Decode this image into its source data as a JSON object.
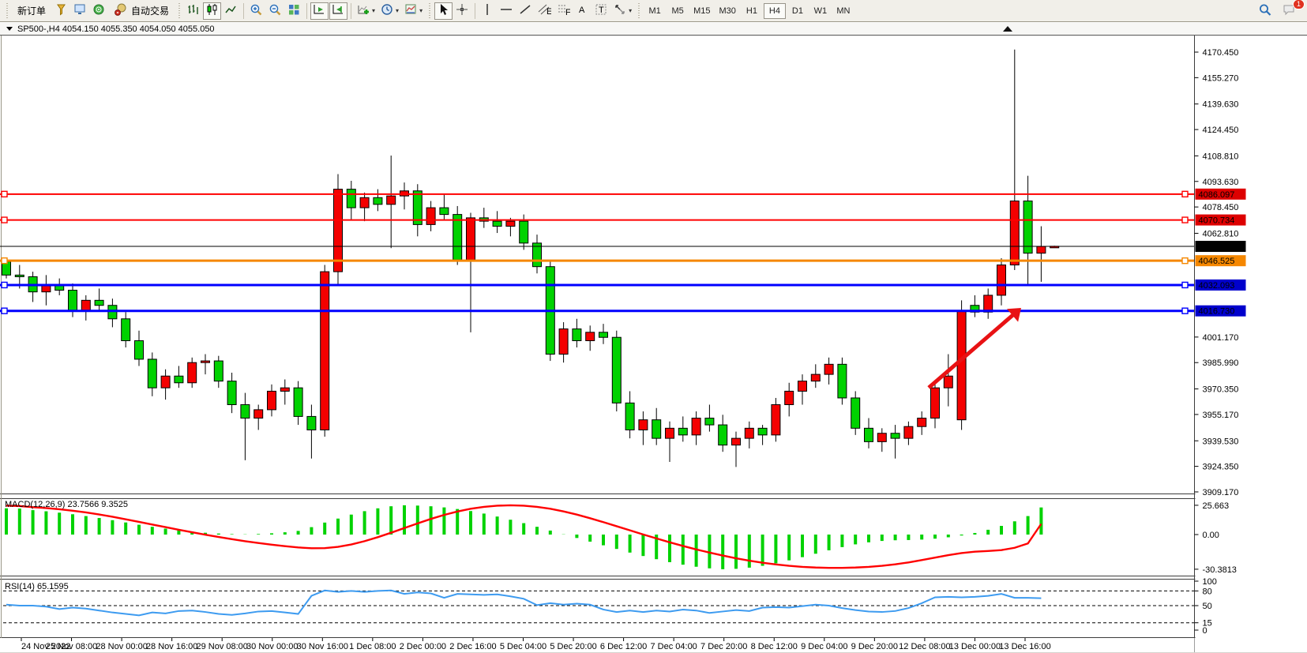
{
  "toolbar": {
    "new_order_label": "新订单",
    "autotrading_label": "自动交易",
    "timeframes": [
      "M1",
      "M5",
      "M15",
      "M30",
      "H1",
      "H4",
      "D1",
      "W1",
      "MN"
    ],
    "active_timeframe": "H4",
    "notification_count": "1"
  },
  "chart": {
    "title_bar": "SP500-,H4  4054.150 4055.350 4054.050 4055.050",
    "symbol": "SP500-",
    "period": "H4"
  },
  "price_axis": {
    "plain_labels": [
      "4170.450",
      "4155.270",
      "4139.630",
      "4124.450",
      "4108.810",
      "4093.630",
      "4078.450",
      "4062.810",
      "4001.170",
      "3985.990",
      "3970.350",
      "3955.170",
      "3939.530",
      "3924.350",
      "3909.170"
    ],
    "badges": [
      {
        "label": "4086.097",
        "color": "#dd0000"
      },
      {
        "label": "4070.734",
        "color": "#dd0000"
      },
      {
        "label": "4055.050",
        "color": "#000000"
      },
      {
        "label": "4046.525",
        "color": "#f58700"
      },
      {
        "label": "4032.093",
        "color": "#0000cc"
      },
      {
        "label": "4016.730",
        "color": "#0000cc"
      }
    ]
  },
  "time_axis": {
    "labels": [
      "24 Nov 2022",
      "25 Nov 08:00",
      "28 Nov 00:00",
      "28 Nov 16:00",
      "29 Nov 08:00",
      "30 Nov 00:00",
      "30 Nov 16:00",
      "1 Dec 08:00",
      "2 Dec 00:00",
      "2 Dec 16:00",
      "5 Dec 04:00",
      "5 Dec 20:00",
      "6 Dec 12:00",
      "7 Dec 04:00",
      "7 Dec 20:00",
      "8 Dec 12:00",
      "9 Dec 04:00",
      "9 Dec 20:00",
      "12 Dec 08:00",
      "13 Dec 00:00",
      "13 Dec 16:00"
    ]
  },
  "panels": {
    "macd": {
      "label": "MACD(12,26,9) 23.7566 9.3525",
      "axis_labels": [
        "25.663",
        "0.00",
        "-30.3813"
      ]
    },
    "rsi": {
      "label": "RSI(14) 65.1595",
      "axis_labels": [
        "100",
        "80",
        "50",
        "15",
        "0"
      ]
    }
  },
  "chart_data": {
    "type": "candlestick",
    "symbol": "SP500-",
    "timeframe": "H4",
    "title": "SP500-,H4",
    "ohlc_current": {
      "open": 4054.15,
      "high": 4055.35,
      "low": 4054.05,
      "close": 4055.05
    },
    "y_axis_range": [
      3909.17,
      4170.45
    ],
    "up_color": "#f40000",
    "down_color": "#00d200",
    "bars": [
      [
        4046,
        4048,
        4036,
        4038
      ],
      [
        4038,
        4044,
        4030,
        4037
      ],
      [
        4037,
        4040,
        4022,
        4028
      ],
      [
        4028,
        4038,
        4020,
        4032
      ],
      [
        4032,
        4036,
        4026,
        4029
      ],
      [
        4029,
        4033,
        4013,
        4017
      ],
      [
        4017,
        4026,
        4011,
        4023
      ],
      [
        4023,
        4030,
        4017,
        4020
      ],
      [
        4020,
        4024,
        4007,
        4012
      ],
      [
        4012,
        4016,
        3995,
        3999
      ],
      [
        3999,
        4005,
        3984,
        3988
      ],
      [
        3988,
        3992,
        3966,
        3971
      ],
      [
        3971,
        3982,
        3964,
        3978
      ],
      [
        3978,
        3984,
        3971,
        3974
      ],
      [
        3974,
        3989,
        3971,
        3986
      ],
      [
        3986,
        3991,
        3979,
        3987
      ],
      [
        3987,
        3990,
        3971,
        3975
      ],
      [
        3975,
        3980,
        3956,
        3961
      ],
      [
        3961,
        3968,
        3928,
        3953
      ],
      [
        3953,
        3961,
        3946,
        3958
      ],
      [
        3958,
        3973,
        3954,
        3969
      ],
      [
        3969,
        3976,
        3961,
        3971
      ],
      [
        3971,
        3975,
        3949,
        3954
      ],
      [
        3954,
        3961,
        3929,
        3946
      ],
      [
        3946,
        4044,
        3942,
        4040
      ],
      [
        4040,
        4098,
        4032,
        4089
      ],
      [
        4089,
        4094,
        4071,
        4078
      ],
      [
        4078,
        4087,
        4070,
        4084
      ],
      [
        4084,
        4089,
        4076,
        4080
      ],
      [
        4080,
        4109,
        4054,
        4085
      ],
      [
        4085,
        4093,
        4077,
        4088
      ],
      [
        4088,
        4092,
        4061,
        4068
      ],
      [
        4068,
        4082,
        4064,
        4078
      ],
      [
        4078,
        4086,
        4071,
        4074
      ],
      [
        4074,
        4079,
        4044,
        4047
      ],
      [
        4047,
        4075,
        4004,
        4072
      ],
      [
        4072,
        4078,
        4066,
        4070
      ],
      [
        4070,
        4076,
        4063,
        4067
      ],
      [
        4067,
        4072,
        4061,
        4070
      ],
      [
        4070,
        4074,
        4053,
        4057
      ],
      [
        4057,
        4062,
        4039,
        4043
      ],
      [
        4043,
        4046,
        3987,
        3991
      ],
      [
        3991,
        4010,
        3986,
        4006
      ],
      [
        4006,
        4012,
        3995,
        3999
      ],
      [
        3999,
        4008,
        3993,
        4004
      ],
      [
        4004,
        4009,
        3997,
        4001
      ],
      [
        4001,
        4005,
        3957,
        3962
      ],
      [
        3962,
        3969,
        3941,
        3946
      ],
      [
        3946,
        3957,
        3937,
        3952
      ],
      [
        3952,
        3959,
        3937,
        3941
      ],
      [
        3941,
        3951,
        3927,
        3947
      ],
      [
        3947,
        3954,
        3939,
        3943
      ],
      [
        3943,
        3957,
        3937,
        3953
      ],
      [
        3953,
        3961,
        3945,
        3949
      ],
      [
        3949,
        3955,
        3933,
        3937
      ],
      [
        3937,
        3945,
        3924,
        3941
      ],
      [
        3941,
        3951,
        3935,
        3947
      ],
      [
        3947,
        3949,
        3937,
        3943
      ],
      [
        3943,
        3965,
        3939,
        3961
      ],
      [
        3961,
        3974,
        3954,
        3969
      ],
      [
        3969,
        3979,
        3961,
        3975
      ],
      [
        3975,
        3985,
        3971,
        3979
      ],
      [
        3979,
        3989,
        3973,
        3985
      ],
      [
        3985,
        3989,
        3961,
        3965
      ],
      [
        3965,
        3969,
        3943,
        3947
      ],
      [
        3947,
        3953,
        3935,
        3939
      ],
      [
        3939,
        3947,
        3933,
        3944
      ],
      [
        3944,
        3949,
        3929,
        3941
      ],
      [
        3941,
        3951,
        3937,
        3948
      ],
      [
        3948,
        3957,
        3943,
        3953
      ],
      [
        3953,
        3975,
        3947,
        3971
      ],
      [
        3971,
        3991,
        3960,
        3978
      ],
      [
        3952,
        4023,
        3946,
        4017
      ],
      [
        4020,
        4026,
        4013,
        4016
      ],
      [
        4016,
        4030,
        4012,
        4026
      ],
      [
        4026,
        4048,
        4020,
        4044
      ],
      [
        4044,
        4172,
        4041,
        4082
      ],
      [
        4082,
        4097,
        4032,
        4051
      ],
      [
        4051,
        4067,
        4034,
        4055
      ],
      [
        4054.2,
        4055.4,
        4054.1,
        4055.1
      ]
    ],
    "horizontal_lines": [
      {
        "price": 4086.097,
        "color": "#ff0000",
        "width": 2,
        "handles": true
      },
      {
        "price": 4070.734,
        "color": "#ff0000",
        "width": 2,
        "handles": true
      },
      {
        "price": 4055.05,
        "color": "#000000",
        "width": 1,
        "handles": false
      },
      {
        "price": 4046.525,
        "color": "#f58700",
        "width": 3,
        "handles": true
      },
      {
        "price": 4032.093,
        "color": "#0000ff",
        "width": 3,
        "handles": true
      },
      {
        "price": 4016.73,
        "color": "#0000ff",
        "width": 3,
        "handles": true
      }
    ],
    "trend_arrow": {
      "from": [
        1176,
        446
      ],
      "to": [
        1293,
        345
      ],
      "color": "#e81214"
    },
    "macd": {
      "params": "12,26,9",
      "current_main": 23.7566,
      "current_signal": 9.3525,
      "range": [
        -30.3813,
        25.663
      ],
      "hist_color": "#00d200",
      "signal_color": "#ff0000",
      "histogram": [
        23.0,
        22.8,
        21.4,
        20.4,
        19.2,
        17.8,
        16.2,
        14.5,
        12.6,
        10.6,
        8.6,
        6.8,
        5.2,
        3.8,
        2.6,
        1.6,
        0.9,
        0.4,
        0.2,
        0.5,
        1.1,
        2.0,
        3.2,
        6.5,
        10.5,
        14.0,
        17.5,
        20.5,
        23.0,
        24.8,
        25.66,
        25.4,
        24.8,
        23.8,
        22.4,
        20.6,
        18.4,
        15.8,
        13.0,
        10.0,
        6.8,
        3.5,
        0.2,
        -3.0,
        -6.2,
        -9.4,
        -12.6,
        -15.8,
        -18.8,
        -21.6,
        -24.2,
        -26.4,
        -28.2,
        -29.6,
        -30.38,
        -30.0,
        -29.0,
        -27.4,
        -25.2,
        -22.6,
        -19.8,
        -16.8,
        -13.8,
        -11.0,
        -8.6,
        -6.8,
        -5.6,
        -5.0,
        -4.8,
        -4.4,
        -3.6,
        -2.4,
        -0.8,
        1.4,
        4.2,
        7.6,
        11.6,
        16.2,
        23.76
      ],
      "signal": [
        25.3,
        25.0,
        24.0,
        23.2,
        22.2,
        20.9,
        19.4,
        17.6,
        15.6,
        13.4,
        11.1,
        8.8,
        6.5,
        4.2,
        2.0,
        -0.1,
        -2.1,
        -4.0,
        -5.8,
        -7.4,
        -8.9,
        -10.2,
        -11.3,
        -12.0,
        -11.9,
        -10.8,
        -8.7,
        -5.8,
        -2.3,
        1.6,
        5.7,
        9.8,
        13.7,
        17.2,
        20.2,
        22.6,
        24.3,
        25.3,
        25.66,
        25.3,
        24.3,
        22.6,
        20.3,
        17.5,
        14.3,
        10.9,
        7.3,
        3.7,
        0.1,
        -3.4,
        -6.8,
        -10.0,
        -13.0,
        -15.8,
        -18.4,
        -20.8,
        -22.9,
        -24.7,
        -26.2,
        -27.4,
        -28.3,
        -28.9,
        -29.2,
        -29.2,
        -28.9,
        -28.3,
        -27.4,
        -26.1,
        -24.4,
        -22.4,
        -20.2,
        -18.0,
        -16.2,
        -15.0,
        -14.4,
        -13.6,
        -11.6,
        -7.8,
        9.35
      ]
    },
    "rsi": {
      "period": 14,
      "current": 65.1595,
      "range": [
        0,
        100
      ],
      "levels": [
        80,
        50,
        15
      ],
      "color": "#3d9bf0",
      "values": [
        52,
        50,
        50,
        48,
        43,
        46,
        44,
        40,
        36,
        33,
        30,
        36,
        34,
        39,
        40,
        37,
        33,
        31,
        34,
        38,
        39,
        36,
        33,
        70,
        81,
        78,
        80,
        78,
        80,
        81,
        74,
        77,
        75,
        66,
        74,
        73,
        72,
        73,
        69,
        64,
        51,
        55,
        52,
        54,
        52,
        42,
        37,
        40,
        37,
        40,
        38,
        42,
        40,
        35,
        38,
        41,
        39,
        46,
        47,
        46,
        49,
        52,
        50,
        45,
        41,
        38,
        37,
        39,
        45,
        55,
        67,
        68,
        67,
        68,
        70,
        74,
        66,
        66,
        65.16
      ]
    }
  },
  "colors": {
    "toolbar_bg": "#f1efe9",
    "chart_bg": "#ffffff",
    "up": "#f40000",
    "down": "#00d200",
    "rsi_line": "#3d9bf0",
    "macd_signal": "#ff0000",
    "badge_red": "#dd0000",
    "badge_orange": "#f58700",
    "badge_blue": "#0000cc",
    "badge_black": "#000000"
  }
}
